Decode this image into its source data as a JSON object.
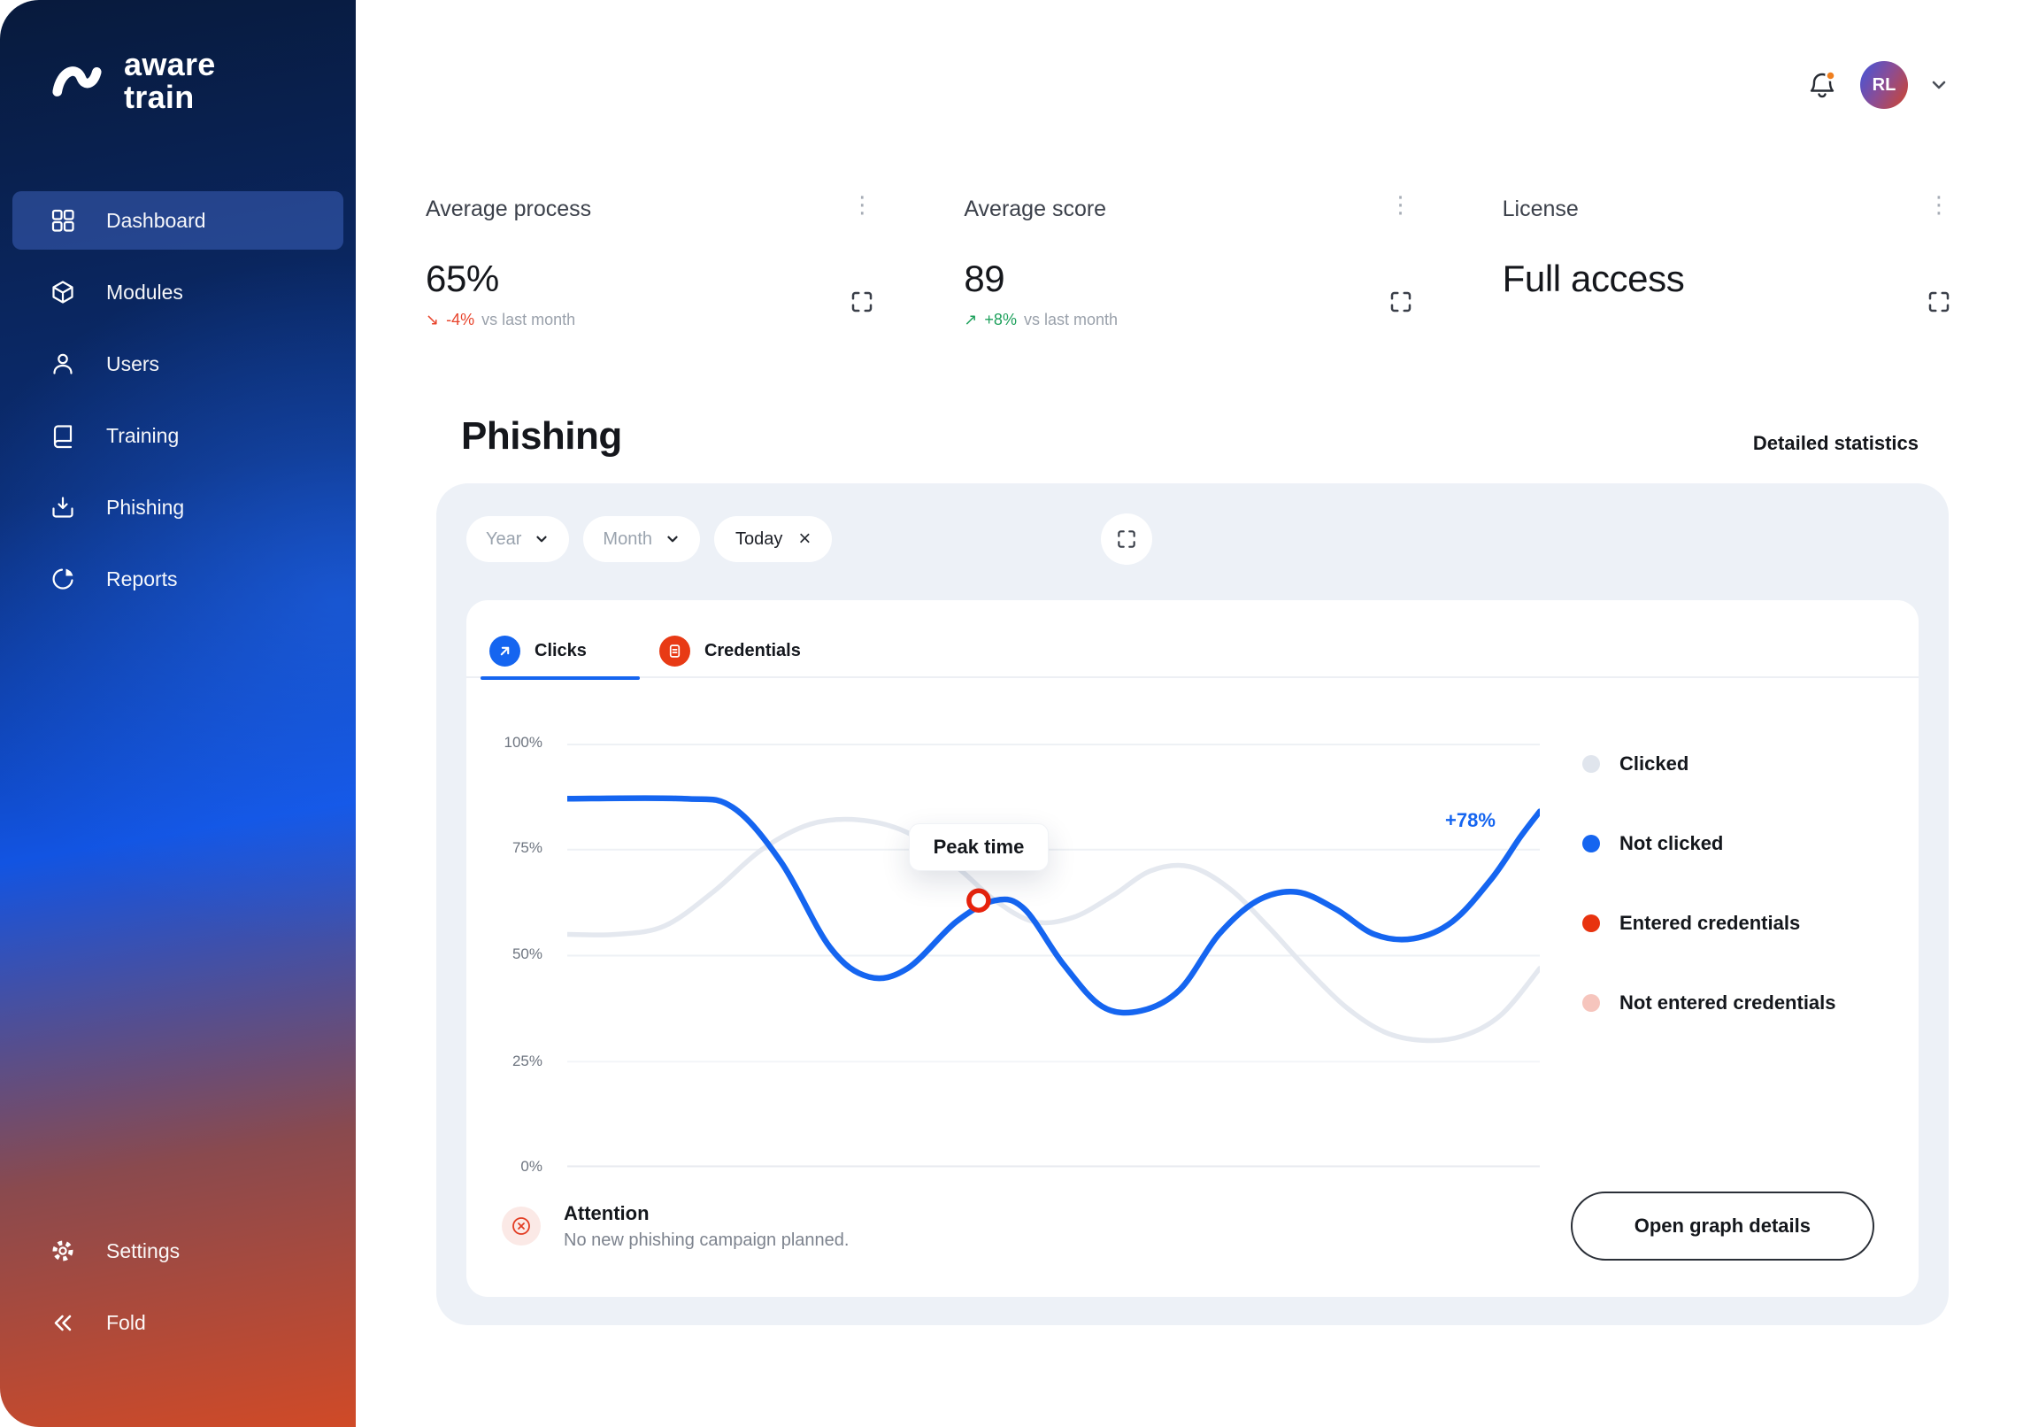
{
  "brand": {
    "line1": "aware",
    "line2": "train"
  },
  "sidebar": {
    "items": [
      {
        "label": "Dashboard",
        "active": true
      },
      {
        "label": "Modules",
        "active": false
      },
      {
        "label": "Users",
        "active": false
      },
      {
        "label": "Training",
        "active": false
      },
      {
        "label": "Phishing",
        "active": false
      },
      {
        "label": "Reports",
        "active": false
      }
    ],
    "footer_items": [
      {
        "label": "Settings"
      },
      {
        "label": "Fold"
      }
    ]
  },
  "header": {
    "avatar_initials": "RL"
  },
  "stats": [
    {
      "title": "Average process",
      "value": "65%",
      "trend_icon": "↘",
      "trend": "-4%",
      "trend_suffix": "vs last month",
      "trend_color": "#E8442C"
    },
    {
      "title": "Average score",
      "value": "89",
      "trend_icon": "↗",
      "trend": "+8%",
      "trend_suffix": "vs last month",
      "trend_color": "#1FA15D"
    },
    {
      "title": "License",
      "value": "Full access"
    }
  ],
  "phishing": {
    "title": "Phishing",
    "details_link": "Detailed statistics",
    "filters": {
      "year_label": "Year",
      "month_label": "Month",
      "today_label": "Today",
      "today_close": "×"
    },
    "tabs": [
      {
        "label": "Clicks",
        "color": "#1565F0",
        "active": true
      },
      {
        "label": "Credentials",
        "color": "#E83A15",
        "active": false
      }
    ],
    "chart_data": {
      "type": "line",
      "ylim": [
        0,
        100
      ],
      "yticks": [
        "100%",
        "75%",
        "50%",
        "25%",
        "0%"
      ],
      "grid": "horizontal",
      "legend_position": "right",
      "series": [
        {
          "name": "Clicked",
          "color": "#E4E8EF",
          "points": [
            [
              0,
              55
            ],
            [
              5,
              55
            ],
            [
              10,
              57
            ],
            [
              15,
              65
            ],
            [
              20,
              75
            ],
            [
              25,
              81
            ],
            [
              30,
              82
            ],
            [
              35,
              79
            ],
            [
              40,
              71
            ],
            [
              44,
              63
            ],
            [
              48,
              58
            ],
            [
              52,
              59
            ],
            [
              56,
              64
            ],
            [
              60,
              70
            ],
            [
              64,
              71
            ],
            [
              68,
              66
            ],
            [
              72,
              57
            ],
            [
              76,
              47
            ],
            [
              80,
              38
            ],
            [
              84,
              32
            ],
            [
              88,
              30
            ],
            [
              92,
              31
            ],
            [
              96,
              36
            ],
            [
              100,
              47
            ]
          ]
        },
        {
          "name": "Not clicked",
          "color": "#1565F0",
          "points": [
            [
              0,
              87
            ],
            [
              12,
              87
            ],
            [
              17,
              85
            ],
            [
              22,
              72
            ],
            [
              27,
              52
            ],
            [
              31,
              45
            ],
            [
              35,
              47
            ],
            [
              40,
              58
            ],
            [
              44,
              63
            ],
            [
              47,
              61
            ],
            [
              51,
              48
            ],
            [
              55,
              38
            ],
            [
              59,
              37
            ],
            [
              63,
              42
            ],
            [
              67,
              55
            ],
            [
              71,
              63
            ],
            [
              75,
              65
            ],
            [
              79,
              61
            ],
            [
              83,
              55
            ],
            [
              87,
              54
            ],
            [
              91,
              58
            ],
            [
              95,
              68
            ],
            [
              98,
              78
            ],
            [
              100,
              84
            ]
          ]
        }
      ],
      "marker": {
        "label": "Peak time",
        "series": "Not clicked",
        "x": 42.3,
        "y": 63
      },
      "end_annotation": {
        "text": "+78%",
        "color": "#1565F0"
      }
    },
    "legend": [
      {
        "label": "Clicked",
        "color": "#E0E5ED"
      },
      {
        "label": "Not clicked",
        "color": "#1565F0"
      },
      {
        "label": "Entered credentials",
        "color": "#E8330F"
      },
      {
        "label": "Not entered credentials",
        "color": "#F6C5BD"
      }
    ],
    "footer": {
      "title": "Attention",
      "message": "No new phishing campaign planned.",
      "button_label": "Open graph details"
    }
  }
}
